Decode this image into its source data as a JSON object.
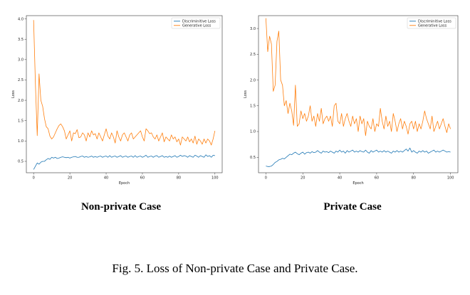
{
  "chart_data": [
    {
      "type": "line",
      "title": "Non-private Case",
      "xlabel": "Epoch",
      "ylabel": "Loss",
      "xlim": [
        -4,
        104
      ],
      "ylim": [
        0.22,
        4.08
      ],
      "xticks": [
        0,
        20,
        40,
        60,
        80,
        100
      ],
      "yticks": [
        0.5,
        1.0,
        1.5,
        2.0,
        2.5,
        3.0,
        3.5,
        4.0
      ],
      "legend": "top-right",
      "grid": false,
      "series": [
        {
          "name": "Discriminitive Loss",
          "color": "#1f77b4",
          "values": [
            0.3,
            0.38,
            0.46,
            0.43,
            0.48,
            0.5,
            0.5,
            0.54,
            0.57,
            0.55,
            0.6,
            0.58,
            0.6,
            0.57,
            0.58,
            0.6,
            0.61,
            0.6,
            0.59,
            0.6,
            0.58,
            0.6,
            0.61,
            0.62,
            0.6,
            0.6,
            0.62,
            0.63,
            0.6,
            0.62,
            0.6,
            0.61,
            0.63,
            0.6,
            0.62,
            0.6,
            0.62,
            0.63,
            0.6,
            0.62,
            0.63,
            0.6,
            0.64,
            0.6,
            0.62,
            0.63,
            0.6,
            0.62,
            0.64,
            0.6,
            0.62,
            0.63,
            0.6,
            0.62,
            0.63,
            0.6,
            0.64,
            0.6,
            0.62,
            0.63,
            0.6,
            0.62,
            0.65,
            0.6,
            0.62,
            0.63,
            0.6,
            0.63,
            0.64,
            0.6,
            0.62,
            0.64,
            0.6,
            0.62,
            0.6,
            0.63,
            0.6,
            0.62,
            0.64,
            0.6,
            0.62,
            0.65,
            0.62,
            0.64,
            0.63,
            0.6,
            0.64,
            0.62,
            0.6,
            0.65,
            0.63,
            0.6,
            0.64,
            0.62,
            0.6,
            0.66,
            0.62,
            0.64,
            0.6,
            0.65,
            0.64
          ]
        },
        {
          "name": "Generative Loss",
          "color": "#ff7f0e",
          "values": [
            3.97,
            2.4,
            1.13,
            2.65,
            2.0,
            1.85,
            1.55,
            1.35,
            1.3,
            1.12,
            1.05,
            1.1,
            1.2,
            1.3,
            1.38,
            1.42,
            1.35,
            1.25,
            1.05,
            1.15,
            1.25,
            1.0,
            1.2,
            1.18,
            1.28,
            1.08,
            1.1,
            1.2,
            1.15,
            1.0,
            1.2,
            1.1,
            1.25,
            1.15,
            1.18,
            1.05,
            1.2,
            1.1,
            1.0,
            1.15,
            1.3,
            1.12,
            1.05,
            1.2,
            1.1,
            0.95,
            1.25,
            1.1,
            1.0,
            1.15,
            1.2,
            1.1,
            1.0,
            1.15,
            1.2,
            1.05,
            1.1,
            1.15,
            1.2,
            1.25,
            1.1,
            1.0,
            1.3,
            1.25,
            1.18,
            1.2,
            1.1,
            1.05,
            1.15,
            1.0,
            1.1,
            1.2,
            0.98,
            1.1,
            1.05,
            1.0,
            1.15,
            1.05,
            1.1,
            0.98,
            1.05,
            0.9,
            1.1,
            1.05,
            1.0,
            1.1,
            0.98,
            1.05,
            0.95,
            1.12,
            0.92,
            1.05,
            1.0,
            0.92,
            1.05,
            0.95,
            1.05,
            1.0,
            0.9,
            1.05,
            1.25
          ]
        }
      ]
    },
    {
      "type": "line",
      "title": "Private Case",
      "xlabel": "Epoch",
      "ylabel": "Loss",
      "xlim": [
        -4,
        104
      ],
      "ylim": [
        0.2,
        3.25
      ],
      "xticks": [
        0,
        20,
        40,
        60,
        80,
        100
      ],
      "yticks": [
        0.5,
        1.0,
        1.5,
        2.0,
        2.5,
        3.0
      ],
      "legend": "top-right",
      "grid": false,
      "series": [
        {
          "name": "Discriminitive Loss",
          "color": "#1f77b4",
          "values": [
            0.33,
            0.32,
            0.32,
            0.33,
            0.36,
            0.4,
            0.42,
            0.45,
            0.46,
            0.48,
            0.47,
            0.5,
            0.53,
            0.56,
            0.55,
            0.58,
            0.6,
            0.57,
            0.55,
            0.58,
            0.6,
            0.56,
            0.59,
            0.6,
            0.58,
            0.61,
            0.59,
            0.6,
            0.63,
            0.6,
            0.58,
            0.62,
            0.6,
            0.61,
            0.59,
            0.62,
            0.6,
            0.58,
            0.62,
            0.6,
            0.64,
            0.6,
            0.62,
            0.58,
            0.63,
            0.6,
            0.62,
            0.64,
            0.6,
            0.62,
            0.6,
            0.63,
            0.61,
            0.6,
            0.64,
            0.6,
            0.58,
            0.63,
            0.6,
            0.62,
            0.64,
            0.6,
            0.62,
            0.6,
            0.63,
            0.6,
            0.62,
            0.6,
            0.58,
            0.62,
            0.6,
            0.63,
            0.6,
            0.62,
            0.6,
            0.63,
            0.66,
            0.62,
            0.68,
            0.6,
            0.63,
            0.6,
            0.58,
            0.62,
            0.6,
            0.63,
            0.6,
            0.62,
            0.58,
            0.6,
            0.62,
            0.64,
            0.6,
            0.62,
            0.6,
            0.62,
            0.64,
            0.62,
            0.6,
            0.61,
            0.6
          ]
        },
        {
          "name": "Generative Loss",
          "color": "#ff7f0e",
          "values": [
            3.2,
            2.55,
            2.85,
            2.7,
            1.78,
            1.9,
            2.75,
            2.95,
            2.0,
            1.9,
            1.5,
            1.6,
            1.35,
            1.55,
            1.4,
            1.12,
            1.9,
            1.1,
            1.15,
            1.4,
            1.25,
            1.35,
            1.2,
            1.3,
            1.5,
            1.2,
            1.3,
            1.1,
            1.35,
            1.2,
            1.45,
            1.15,
            1.25,
            1.3,
            1.2,
            1.3,
            1.1,
            1.5,
            1.55,
            1.2,
            1.15,
            1.35,
            1.1,
            1.25,
            1.35,
            1.2,
            1.1,
            1.3,
            1.15,
            1.25,
            1.0,
            1.3,
            1.15,
            1.25,
            0.92,
            1.2,
            1.1,
            1.05,
            1.25,
            1.0,
            1.15,
            1.1,
            1.45,
            1.2,
            1.05,
            1.3,
            1.1,
            1.2,
            1.0,
            1.35,
            1.2,
            1.0,
            1.15,
            1.25,
            1.05,
            1.2,
            1.1,
            0.95,
            1.15,
            1.2,
            1.05,
            1.2,
            1.0,
            1.15,
            1.05,
            1.2,
            1.4,
            1.25,
            1.15,
            1.05,
            1.3,
            1.0,
            1.1,
            1.2,
            1.05,
            1.15,
            1.25,
            1.1,
            0.98,
            1.15,
            1.05
          ]
        }
      ]
    }
  ],
  "figure_caption": "Fig. 5.  Loss of Non-private Case and Private Case."
}
